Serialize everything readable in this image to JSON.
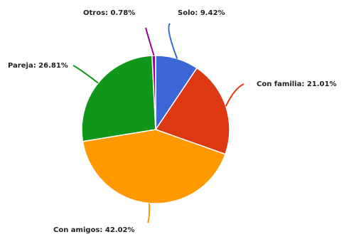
{
  "chart_data": {
    "type": "pie",
    "slices": [
      {
        "name": "Solo",
        "value": 9.42,
        "label": "Solo: 9.42%",
        "color": "#3b66d6"
      },
      {
        "name": "Con familia",
        "value": 21.01,
        "label": "Con familia: 21.01%",
        "color": "#dc3912"
      },
      {
        "name": "Con amigos",
        "value": 42.02,
        "label": "Con amigos: 42.02%",
        "color": "#ff9900"
      },
      {
        "name": "Pareja",
        "value": 26.81,
        "label": "Pareja: 26.81%",
        "color": "#109618"
      },
      {
        "name": "Otros",
        "value": 0.78,
        "label": "Otros: 0.78%",
        "color": "#990099"
      }
    ],
    "legend": "none"
  }
}
